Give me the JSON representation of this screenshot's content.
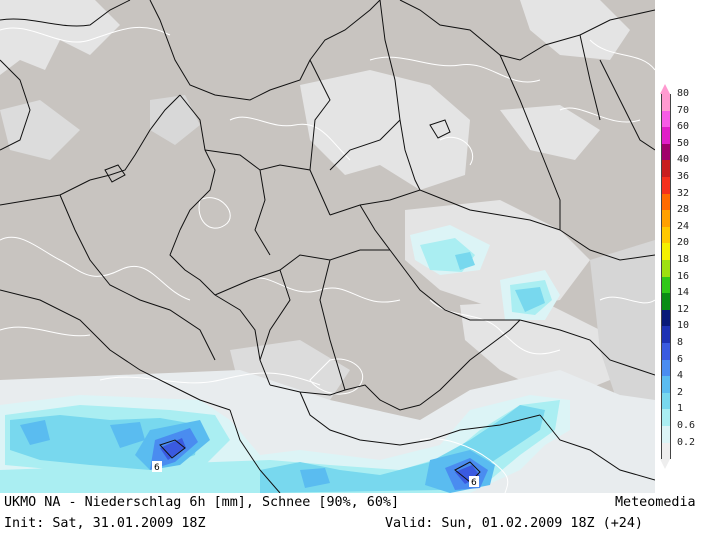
{
  "caption": {
    "title": "UKMO NA - Niederschlag 6h [mm], Schnee [90%, 60%]",
    "brand": "Meteomedia",
    "init": "Init: Sat, 31.01.2009 18Z",
    "valid": "Valid: Sun, 01.02.2009 18Z (+24)"
  },
  "legend": {
    "levels": [
      {
        "label": "80",
        "color": "#ff9ad0"
      },
      {
        "label": "70",
        "color": "#f75ce6"
      },
      {
        "label": "60",
        "color": "#e01ec8"
      },
      {
        "label": "50",
        "color": "#a0006a"
      },
      {
        "label": "40",
        "color": "#c81e1e"
      },
      {
        "label": "36",
        "color": "#f5301c"
      },
      {
        "label": "32",
        "color": "#ff6a00"
      },
      {
        "label": "28",
        "color": "#ffa000"
      },
      {
        "label": "24",
        "color": "#ffc800"
      },
      {
        "label": "20",
        "color": "#f5f000"
      },
      {
        "label": "18",
        "color": "#9ee010"
      },
      {
        "label": "16",
        "color": "#30c818"
      },
      {
        "label": "14",
        "color": "#0a8c14"
      },
      {
        "label": "12",
        "color": "#0a1a78"
      },
      {
        "label": "10",
        "color": "#1e32b4"
      },
      {
        "label": "8",
        "color": "#3a5ae0"
      },
      {
        "label": "6",
        "color": "#4a8cf0"
      },
      {
        "label": "4",
        "color": "#5abcf0"
      },
      {
        "label": "2",
        "color": "#78d8ee"
      },
      {
        "label": "1",
        "color": "#aaeef2"
      },
      {
        "label": "0.6",
        "color": "#dcf4f6"
      },
      {
        "label": "0.2",
        "color": "#eeeeee"
      }
    ]
  },
  "map": {
    "contour_labels": [
      {
        "text": "6",
        "name": "contour-label-geneva"
      },
      {
        "text": "6",
        "name": "contour-label-alps"
      }
    ]
  }
}
